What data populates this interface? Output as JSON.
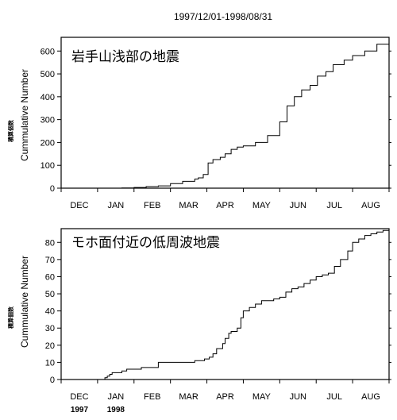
{
  "title": "1997/12/01-1998/08/31",
  "chart_data": [
    {
      "type": "line",
      "title": "岩手山浅部の地震",
      "ylabel": "Cummulative Number",
      "ylabel_jp": "積算個数",
      "xlim": [
        0,
        270
      ],
      "ylim": [
        0,
        660
      ],
      "yticks": [
        0,
        100,
        200,
        300,
        400,
        500,
        600
      ],
      "month_labels": [
        "DEC",
        "JAN",
        "FEB",
        "MAR",
        "APR",
        "MAY",
        "JUN",
        "JUL",
        "AUG"
      ],
      "year_labels": [],
      "x": [
        0,
        40,
        50,
        60,
        70,
        80,
        90,
        100,
        110,
        113,
        117,
        121,
        125,
        131,
        135,
        140,
        145,
        150,
        160,
        170,
        180,
        186,
        192,
        198,
        205,
        211,
        218,
        224,
        233,
        240,
        250,
        260,
        270
      ],
      "y": [
        0,
        0,
        1,
        3,
        7,
        10,
        20,
        30,
        40,
        45,
        60,
        110,
        125,
        135,
        150,
        170,
        180,
        185,
        200,
        230,
        290,
        360,
        400,
        430,
        450,
        490,
        510,
        540,
        560,
        580,
        600,
        630,
        650
      ]
    },
    {
      "type": "line",
      "title": "モホ面付近の低周波地震",
      "ylabel": "Cummulative Number",
      "ylabel_jp": "積算個数",
      "xlim": [
        0,
        270
      ],
      "ylim": [
        0,
        88
      ],
      "yticks": [
        0,
        10,
        20,
        30,
        40,
        50,
        60,
        70,
        80
      ],
      "month_labels": [
        "DEC",
        "JAN",
        "FEB",
        "MAR",
        "APR",
        "MAY",
        "JUN",
        "JUL",
        "AUG"
      ],
      "year_labels": [
        "1997",
        "1998"
      ],
      "x": [
        0,
        34,
        36,
        38,
        40,
        42,
        45,
        50,
        54,
        60,
        66,
        70,
        80,
        90,
        100,
        110,
        114,
        118,
        120,
        122,
        125,
        128,
        133,
        135,
        138,
        140,
        142,
        145,
        148,
        150,
        155,
        160,
        165,
        170,
        175,
        180,
        185,
        190,
        195,
        200,
        205,
        210,
        215,
        220,
        225,
        230,
        233,
        236,
        240,
        245,
        250,
        255,
        260,
        265,
        270
      ],
      "y": [
        0,
        0,
        1,
        2,
        3,
        4,
        4,
        5,
        6,
        6,
        7,
        7,
        10,
        10,
        10,
        11,
        11,
        12,
        12,
        13,
        15,
        18,
        21,
        24,
        27,
        28,
        28,
        30,
        36,
        40,
        42,
        44,
        46,
        46,
        47,
        48,
        51,
        53,
        54,
        56,
        58,
        60,
        61,
        62,
        66,
        70,
        70,
        75,
        80,
        82,
        84,
        85,
        86,
        87,
        88
      ]
    }
  ]
}
